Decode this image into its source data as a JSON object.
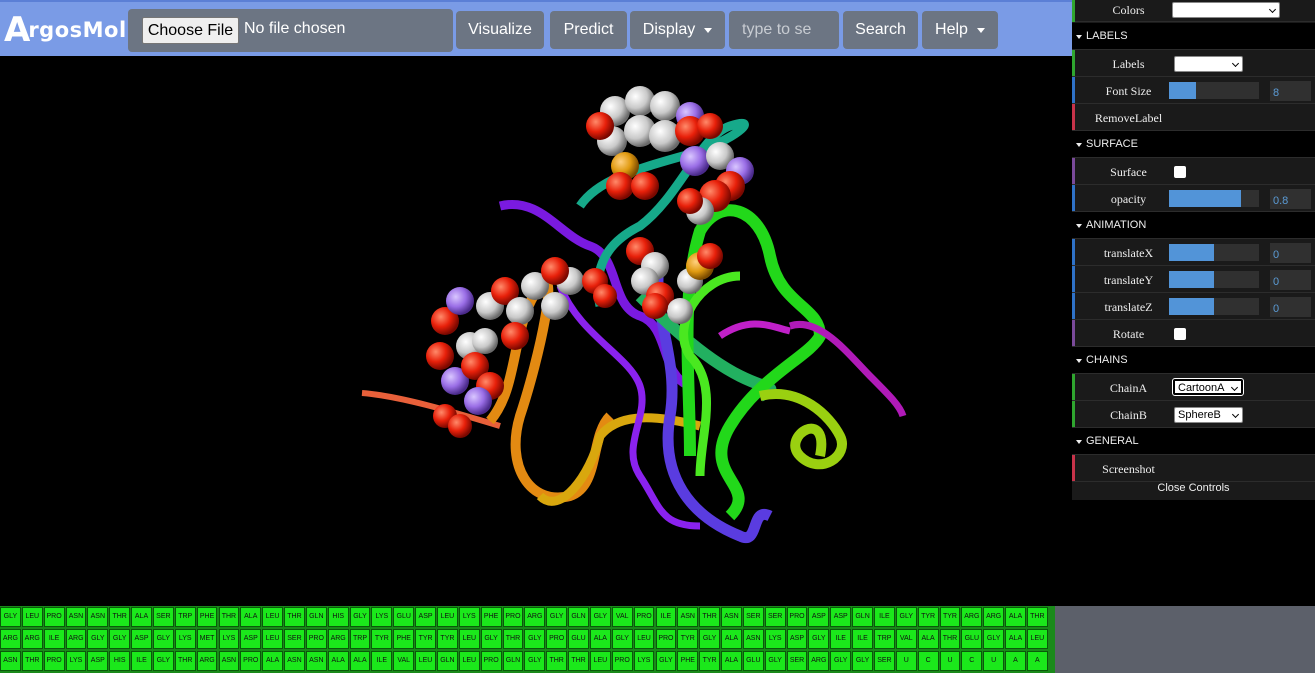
{
  "navbar": {
    "logo_initial": "A",
    "logo_text": "rgosMol",
    "choose_file_label": "Choose File",
    "no_file_text": "No file chosen",
    "visualize_label": "Visualize",
    "predict_label": "Predict",
    "display_label": "Display",
    "search_placeholder": "type to se",
    "search_label": "Search",
    "help_label": "Help"
  },
  "panel": {
    "colors_label": "Colors",
    "labels_folder": "LABELS",
    "labels_label": "Labels",
    "font_size_label": "Font Size",
    "font_size_value": "8",
    "font_size_fraction": 0.3,
    "remove_label": "RemoveLabel",
    "surface_folder": "SURFACE",
    "surface_label": "Surface",
    "opacity_label": "opacity",
    "opacity_value": "0.8",
    "opacity_fraction": 0.8,
    "animation_folder": "ANIMATION",
    "translate_x_label": "translateX",
    "translate_x_value": "0",
    "translate_y_label": "translateY",
    "translate_y_value": "0",
    "translate_z_label": "translateZ",
    "translate_z_value": "0",
    "translate_fraction": 0.5,
    "rotate_label": "Rotate",
    "chains_folder": "CHAINS",
    "chain_a_label": "ChainA",
    "chain_a_value": "CartoonA",
    "chain_b_label": "ChainB",
    "chain_b_value": "SphereB",
    "general_folder": "GENERAL",
    "screenshot_label": "Screenshot",
    "close_controls": "Close Controls"
  },
  "sequence": {
    "rows": [
      [
        "GLY",
        "LEU",
        "PRO",
        "ASN",
        "ASN",
        "THR",
        "ALA",
        "SER",
        "TRP",
        "PHE",
        "THR",
        "ALA",
        "LEU",
        "THR",
        "GLN",
        "HIS",
        "GLY",
        "LYS",
        "GLU",
        "ASP",
        "LEU",
        "LYS",
        "PHE",
        "PRO",
        "ARG",
        "GLY",
        "GLN",
        "GLY",
        "VAL",
        "PRO",
        "ILE",
        "ASN",
        "THR",
        "ASN",
        "SER",
        "SER",
        "PRO",
        "ASP",
        "ASP",
        "GLN",
        "ILE",
        "GLY",
        "TYR",
        "TYR",
        "ARG",
        "ARG",
        "ALA",
        "THR"
      ],
      [
        "ARG",
        "ARG",
        "ILE",
        "ARG",
        "GLY",
        "GLY",
        "ASP",
        "GLY",
        "LYS",
        "MET",
        "LYS",
        "ASP",
        "LEU",
        "SER",
        "PRO",
        "ARG",
        "TRP",
        "TYR",
        "PHE",
        "TYR",
        "TYR",
        "LEU",
        "GLY",
        "THR",
        "GLY",
        "PRO",
        "GLU",
        "ALA",
        "GLY",
        "LEU",
        "PRO",
        "TYR",
        "GLY",
        "ALA",
        "ASN",
        "LYS",
        "ASP",
        "GLY",
        "ILE",
        "ILE",
        "TRP",
        "VAL",
        "ALA",
        "THR",
        "GLU",
        "GLY",
        "ALA",
        "LEU"
      ],
      [
        "ASN",
        "THR",
        "PRO",
        "LYS",
        "ASP",
        "HIS",
        "ILE",
        "GLY",
        "THR",
        "ARG",
        "ASN",
        "PRO",
        "ALA",
        "ASN",
        "ASN",
        "ALA",
        "ALA",
        "ILE",
        "VAL",
        "LEU",
        "GLN",
        "LEU",
        "PRO",
        "GLN",
        "GLY",
        "THR",
        "THR",
        "LEU",
        "PRO",
        "LYS",
        "GLY",
        "PHE",
        "TYR",
        "ALA",
        "GLU",
        "GLY",
        "SER",
        "ARG",
        "GLY",
        "GLY",
        "SER",
        "U",
        "C",
        "U",
        "C",
        "U",
        "A",
        "A"
      ]
    ]
  },
  "colors": {
    "navbar_bg": "#7a9be6",
    "button_bg": "#6c7583",
    "residue_cell": "#1be81b"
  }
}
